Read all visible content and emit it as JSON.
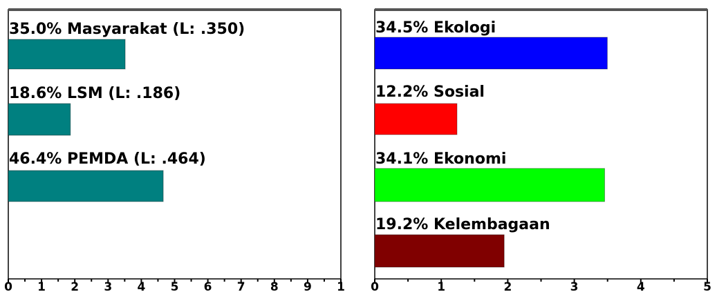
{
  "chart_data": [
    {
      "type": "bar",
      "orientation": "horizontal",
      "categories": [
        "Masyarakat",
        "LSM",
        "PEMDA"
      ],
      "bar_labels": [
        "35.0% Masyarakat (L: .350)",
        "18.6% LSM (L: .186)",
        "46.4% PEMDA (L: .464)"
      ],
      "values": [
        3.5,
        1.86,
        4.64
      ],
      "colors": [
        "#008080",
        "#008080",
        "#008080"
      ],
      "xlim": [
        0,
        10
      ],
      "x_ticks": [
        "0",
        "1",
        "2",
        "3",
        "4",
        "5",
        "6",
        "7",
        "8",
        "9",
        "1"
      ],
      "grid": false
    },
    {
      "type": "bar",
      "orientation": "horizontal",
      "categories": [
        "Ekologi",
        "Sosial",
        "Ekonomi",
        "Kelembagaan"
      ],
      "bar_labels": [
        "34.5% Ekologi",
        "12.2% Sosial",
        "34.1% Ekonomi",
        "19.2% Kelembagaan"
      ],
      "values": [
        3.45,
        1.22,
        3.41,
        1.92
      ],
      "colors": [
        "#0000ff",
        "#ff0000",
        "#00ff00",
        "#800000"
      ],
      "xlim": [
        0,
        5
      ],
      "x_ticks": [
        "0",
        "1",
        "2",
        "3",
        "4",
        "5"
      ],
      "grid": false
    }
  ]
}
